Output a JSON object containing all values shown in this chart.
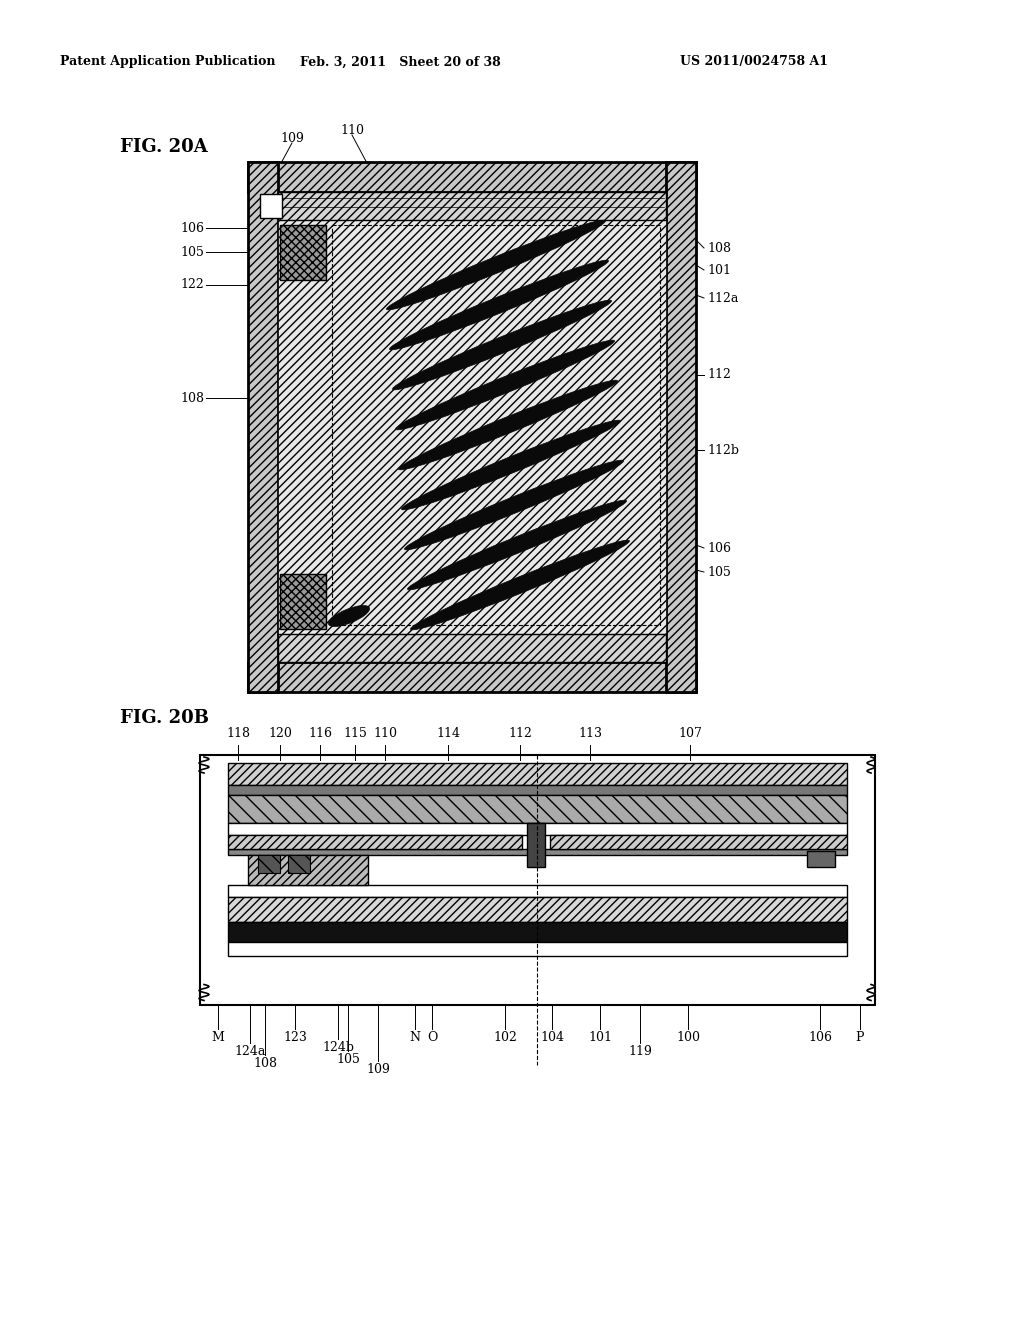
{
  "header_left": "Patent Application Publication",
  "header_mid": "Feb. 3, 2011   Sheet 20 of 38",
  "header_right": "US 2011/0024758 A1",
  "fig_20a_label": "FIG. 20A",
  "fig_20b_label": "FIG. 20B",
  "bg_color": "#ffffff",
  "label_fontsize": 9,
  "header_fontsize": 9,
  "title_fontsize": 13
}
